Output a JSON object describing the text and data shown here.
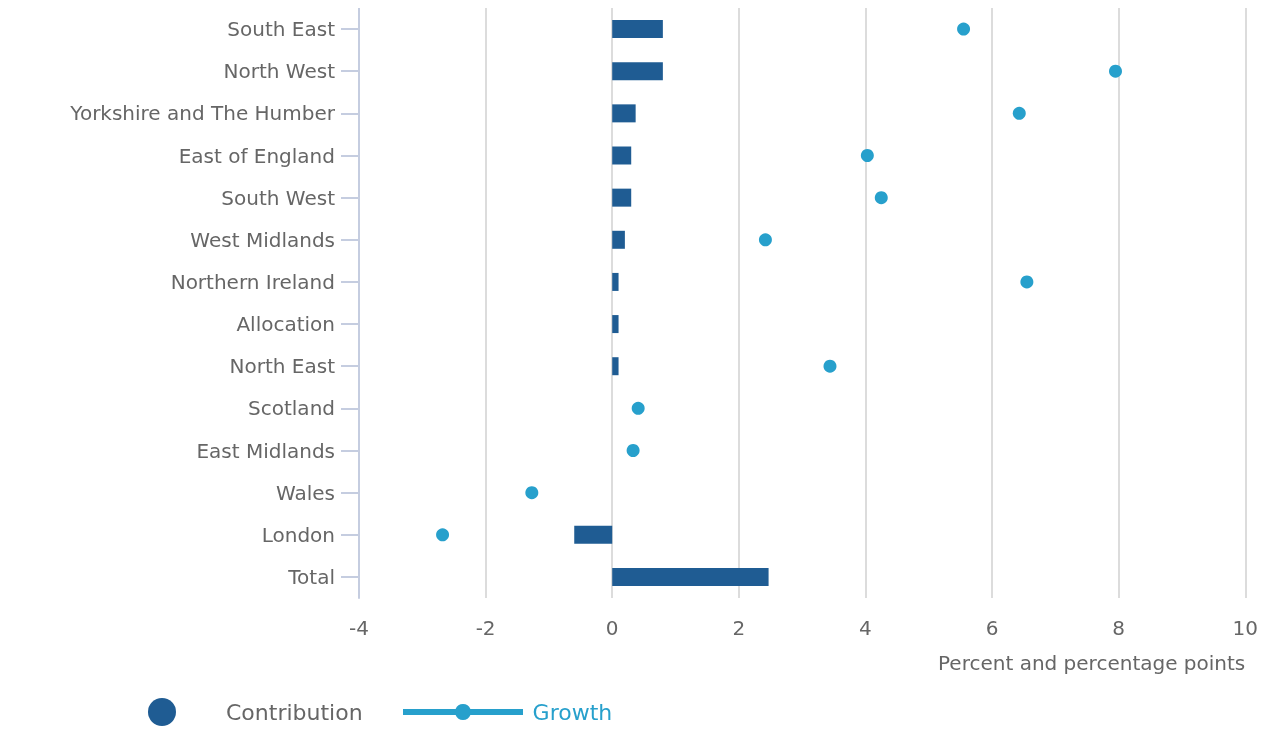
{
  "chart_data": {
    "type": "bar",
    "orientation": "horizontal",
    "xlabel": "Percent and percentage points",
    "categories": [
      "South East",
      "North West",
      "Yorkshire and The Humber",
      "East of England",
      "South West",
      "West Midlands",
      "Northern Ireland",
      "Allocation",
      "North East",
      "Scotland",
      "East Midlands",
      "Wales",
      "London",
      "Total"
    ],
    "series": [
      {
        "name": "Contribution",
        "type": "bar",
        "color": "#1f5c93",
        "values": [
          0.8,
          0.8,
          0.37,
          0.3,
          0.3,
          0.2,
          0.1,
          0.1,
          0.1,
          null,
          null,
          null,
          -0.6,
          2.47
        ]
      },
      {
        "name": "Growth",
        "type": "scatter",
        "color": "#27a0cc",
        "values": [
          5.55,
          7.95,
          6.43,
          4.03,
          4.25,
          2.42,
          6.55,
          null,
          3.44,
          0.41,
          0.33,
          -1.27,
          -2.68,
          null
        ]
      }
    ],
    "xlim": [
      -4,
      10
    ],
    "xticks": [
      -4,
      -2,
      0,
      2,
      4,
      6,
      8,
      10
    ],
    "grid": "x",
    "legend": "bottom left",
    "marker": "circle"
  }
}
